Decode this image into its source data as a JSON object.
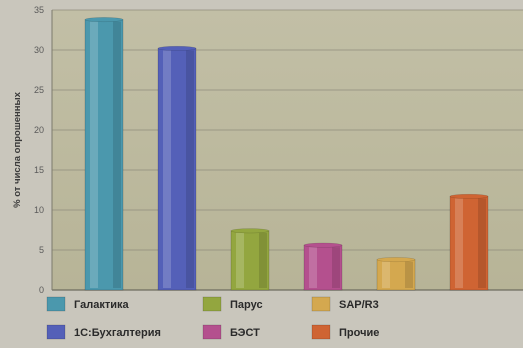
{
  "chart_data": {
    "type": "bar",
    "title": "",
    "xlabel": "",
    "ylabel": "% от числа опрошенных",
    "ylim": [
      0,
      35
    ],
    "yticks": [
      0,
      5,
      10,
      15,
      20,
      25,
      30,
      35
    ],
    "grid": true,
    "legend_position": "bottom",
    "categories": [
      "Галактика",
      "1С:Бухгалтерия",
      "Парус",
      "БЭСТ",
      "SAP/R3",
      "Прочие"
    ],
    "values": [
      33.8,
      30.2,
      7.4,
      5.6,
      3.8,
      11.7
    ],
    "colors": [
      "#4b98ad",
      "#5460b8",
      "#93a63f",
      "#b4508e",
      "#d4a84f",
      "#cf6433"
    ]
  }
}
